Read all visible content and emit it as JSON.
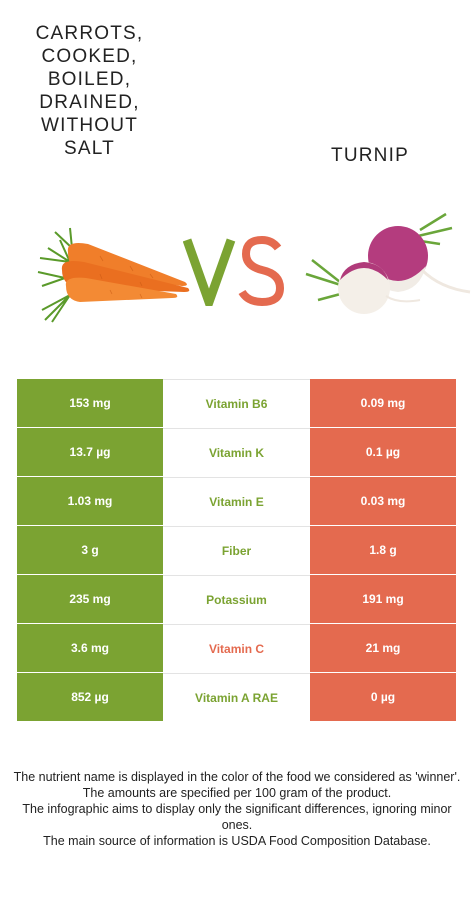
{
  "food_left": {
    "title": "CARROTS,\nCOOKED,\nBOILED,\nDRAINED,\nWITHOUT\nSALT",
    "image": "carrots-image"
  },
  "food_right": {
    "title": "TURNIP",
    "image": "turnip-image"
  },
  "vs": {
    "v": "V",
    "s": "S"
  },
  "colors": {
    "left_green": "#7ba332",
    "right_red": "#e46a4f"
  },
  "rows": [
    {
      "left": "153 mg",
      "nutrient": "Vitamin B6",
      "right": "0.09 mg",
      "winner": "left"
    },
    {
      "left": "13.7 µg",
      "nutrient": "Vitamin K",
      "right": "0.1 µg",
      "winner": "left"
    },
    {
      "left": "1.03 mg",
      "nutrient": "Vitamin E",
      "right": "0.03 mg",
      "winner": "left"
    },
    {
      "left": "3 g",
      "nutrient": "Fiber",
      "right": "1.8 g",
      "winner": "left"
    },
    {
      "left": "235 mg",
      "nutrient": "Potassium",
      "right": "191 mg",
      "winner": "left"
    },
    {
      "left": "3.6 mg",
      "nutrient": "Vitamin C",
      "right": "21 mg",
      "winner": "right"
    },
    {
      "left": "852 µg",
      "nutrient": "Vitamin A RAE",
      "right": "0 µg",
      "winner": "left"
    }
  ],
  "footer": {
    "line1": "The nutrient name is displayed in the color of the food we considered as 'winner'.",
    "line2": "The amounts are specified per 100 gram of the product.",
    "line3": "The infographic aims to display only the significant differences, ignoring minor ones.",
    "line4": "The main source of information is USDA Food Composition Database."
  }
}
